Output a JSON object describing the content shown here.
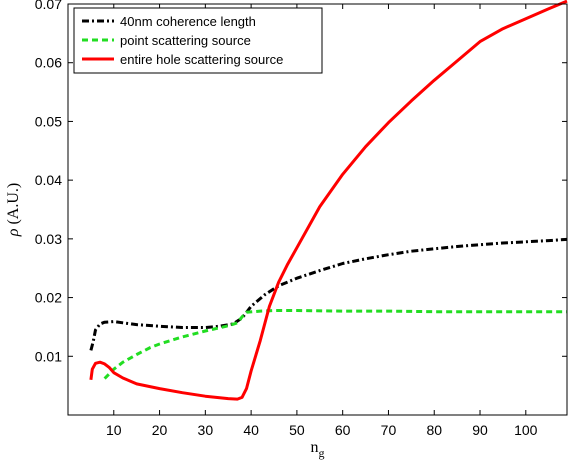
{
  "chart_data": {
    "type": "line",
    "xlabel": "n",
    "xlabel_subscript": "g",
    "ylabel_symbol": "ρ",
    "ylabel_unit": "(A.U.)",
    "xlim": [
      0,
      109
    ],
    "ylim": [
      0,
      0.07
    ],
    "xticks": [
      10,
      20,
      30,
      40,
      50,
      60,
      70,
      80,
      90,
      100
    ],
    "yticks": [
      0.01,
      0.02,
      0.03,
      0.04,
      0.05,
      0.06,
      0.07
    ],
    "ytick_labels": [
      "0.01",
      "0.02",
      "0.03",
      "0.04",
      "0.05",
      "0.06",
      "0.07"
    ],
    "grid": false,
    "legend_position": "top-left",
    "series": [
      {
        "name": "40nm coherence length",
        "color": "#000000",
        "style": "dash-dot",
        "points": [
          [
            5,
            0.011
          ],
          [
            5.5,
            0.0125
          ],
          [
            6,
            0.0145
          ],
          [
            7,
            0.0155
          ],
          [
            8,
            0.0158
          ],
          [
            10,
            0.0159
          ],
          [
            12,
            0.0157
          ],
          [
            15,
            0.0154
          ],
          [
            20,
            0.0151
          ],
          [
            25,
            0.0149
          ],
          [
            30,
            0.0149
          ],
          [
            33,
            0.0151
          ],
          [
            36,
            0.0155
          ],
          [
            38,
            0.0165
          ],
          [
            40,
            0.0185
          ],
          [
            43,
            0.0205
          ],
          [
            46,
            0.022
          ],
          [
            50,
            0.0233
          ],
          [
            55,
            0.0246
          ],
          [
            60,
            0.0258
          ],
          [
            65,
            0.0266
          ],
          [
            70,
            0.0273
          ],
          [
            75,
            0.0279
          ],
          [
            80,
            0.0283
          ],
          [
            85,
            0.0287
          ],
          [
            90,
            0.029
          ],
          [
            95,
            0.0293
          ],
          [
            100,
            0.0295
          ],
          [
            105,
            0.0297
          ],
          [
            109,
            0.0299
          ]
        ]
      },
      {
        "name": "point scattering source",
        "color": "#22dd22",
        "style": "dashed",
        "points": [
          [
            8,
            0.0062
          ],
          [
            10,
            0.0078
          ],
          [
            12,
            0.009
          ],
          [
            15,
            0.0103
          ],
          [
            18,
            0.0115
          ],
          [
            20,
            0.0121
          ],
          [
            25,
            0.0133
          ],
          [
            30,
            0.0143
          ],
          [
            35,
            0.0152
          ],
          [
            37,
            0.0157
          ],
          [
            38,
            0.0167
          ],
          [
            39,
            0.0175
          ],
          [
            42,
            0.0177
          ],
          [
            45,
            0.0178
          ],
          [
            50,
            0.0178
          ],
          [
            60,
            0.0177
          ],
          [
            70,
            0.0177
          ],
          [
            80,
            0.0176
          ],
          [
            90,
            0.0176
          ],
          [
            100,
            0.0176
          ],
          [
            109,
            0.0176
          ]
        ]
      },
      {
        "name": "entire hole scattering source",
        "color": "#ff0000",
        "style": "solid",
        "points": [
          [
            5,
            0.006
          ],
          [
            5.3,
            0.0078
          ],
          [
            6,
            0.0088
          ],
          [
            7,
            0.009
          ],
          [
            8,
            0.0087
          ],
          [
            9,
            0.0081
          ],
          [
            10,
            0.0072
          ],
          [
            12,
            0.0063
          ],
          [
            15,
            0.0053
          ],
          [
            20,
            0.0045
          ],
          [
            25,
            0.0038
          ],
          [
            30,
            0.0032
          ],
          [
            35,
            0.0028
          ],
          [
            37,
            0.0027
          ],
          [
            38,
            0.003
          ],
          [
            39,
            0.0045
          ],
          [
            40,
            0.0075
          ],
          [
            42,
            0.0127
          ],
          [
            44,
            0.0185
          ],
          [
            46,
            0.0226
          ],
          [
            48,
            0.0257
          ],
          [
            50,
            0.0285
          ],
          [
            55,
            0.0355
          ],
          [
            60,
            0.041
          ],
          [
            65,
            0.0457
          ],
          [
            70,
            0.0498
          ],
          [
            75,
            0.0535
          ],
          [
            80,
            0.057
          ],
          [
            85,
            0.0603
          ],
          [
            90,
            0.0636
          ],
          [
            95,
            0.0658
          ],
          [
            100,
            0.0675
          ],
          [
            105,
            0.0692
          ],
          [
            109,
            0.0705
          ]
        ]
      }
    ]
  }
}
